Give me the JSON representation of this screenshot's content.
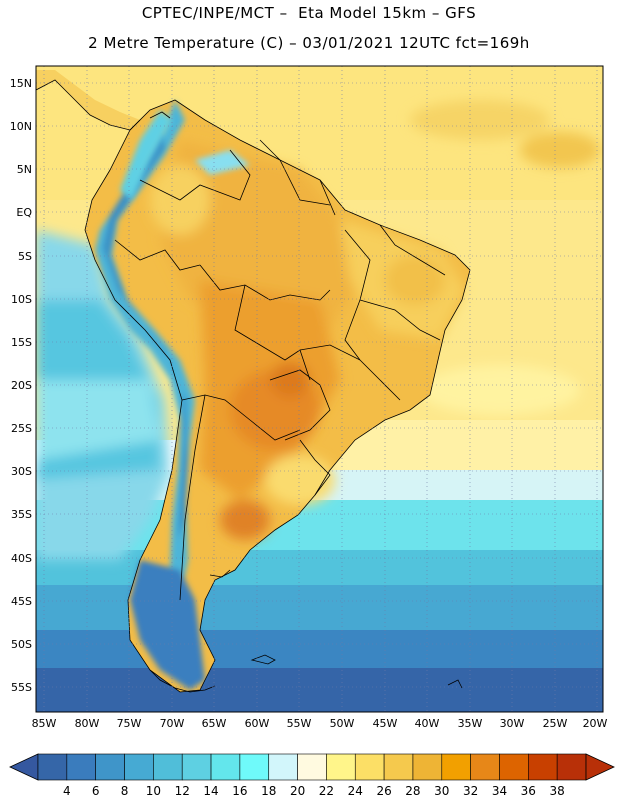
{
  "title": {
    "line1": "CPTEC/INPE/MCT –  Eta Model 15km – GFS",
    "line2": "2 Metre Temperature (C) – 03/01/2021 12UTC fct=169h"
  },
  "axes": {
    "lat_labels": [
      "15N",
      "10N",
      "5N",
      "EQ",
      "5S",
      "10S",
      "15S",
      "20S",
      "25S",
      "30S",
      "35S",
      "40S",
      "45S",
      "50S",
      "55S"
    ],
    "lon_labels": [
      "85W",
      "80W",
      "75W",
      "70W",
      "65W",
      "60W",
      "55W",
      "50W",
      "45W",
      "40W",
      "35W",
      "30W",
      "25W",
      "20W"
    ]
  },
  "colorbar": {
    "labels": [
      "4",
      "6",
      "8",
      "10",
      "12",
      "14",
      "16",
      "18",
      "20",
      "22",
      "24",
      "26",
      "28",
      "30",
      "32",
      "34",
      "36",
      "38"
    ],
    "colors": [
      "#3566a8",
      "#3a7cbd",
      "#3f95c9",
      "#46aad3",
      "#50bed9",
      "#5ed0e2",
      "#63e6ec",
      "#6ffafa",
      "#d2f6fb",
      "#fffae0",
      "#fff58a",
      "#fcdf66",
      "#f5c94d",
      "#eeb435",
      "#f2a000",
      "#e78718",
      "#dd6400",
      "#c84000",
      "#b83008"
    ],
    "left_arrow_color": "#3558a0",
    "right_arrow_color": "#b83008"
  },
  "colors": {
    "ocean_north": "#fde98a",
    "ocean_trop": "#fde37b",
    "land_hot": "#eeb037",
    "andes": "#4ab5d8",
    "ocean_cold": "#3a78b8"
  }
}
